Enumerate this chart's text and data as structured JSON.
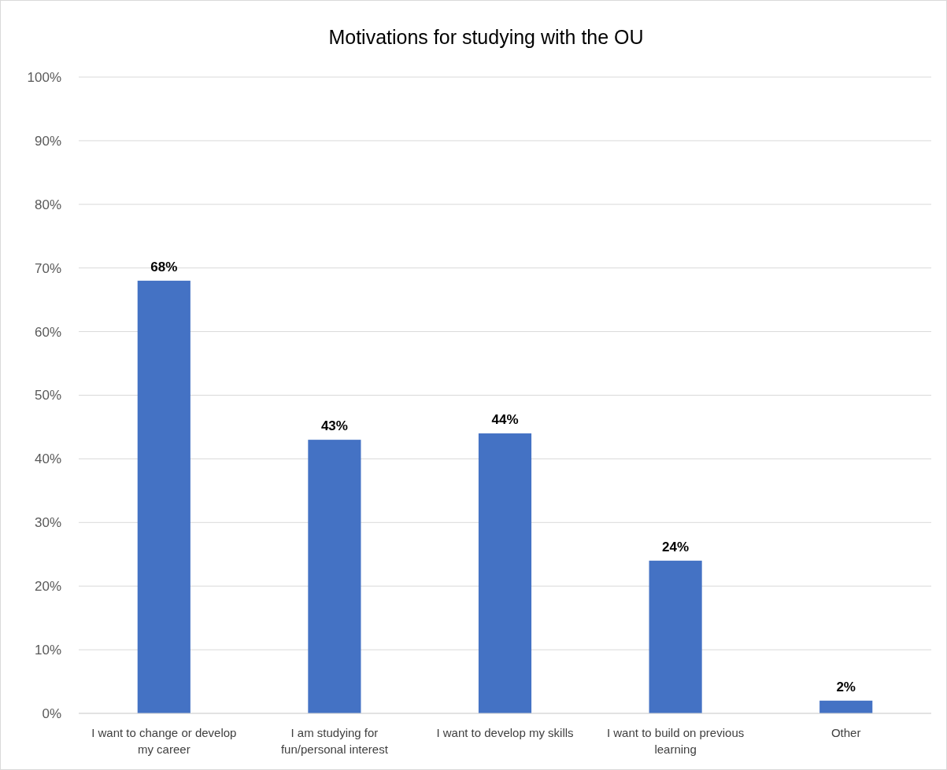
{
  "chart_data": {
    "type": "bar",
    "title": "Motivations for studying with the OU",
    "categories": [
      "I want to change or develop my career",
      "I am studying for fun/personal interest",
      "I want to develop my skills",
      "I want to build on previous learning",
      "Other"
    ],
    "values": [
      68,
      43,
      44,
      24,
      2
    ],
    "value_labels": [
      "68%",
      "43%",
      "44%",
      "24%",
      "2%"
    ],
    "color": "#4472c4",
    "ylim": [
      0,
      100
    ],
    "yticks": [
      {
        "value": 0,
        "label": "0%"
      },
      {
        "value": 10,
        "label": "10%"
      },
      {
        "value": 20,
        "label": "20%"
      },
      {
        "value": 30,
        "label": "30%"
      },
      {
        "value": 40,
        "label": "40%"
      },
      {
        "value": 50,
        "label": "50%"
      },
      {
        "value": 60,
        "label": "60%"
      },
      {
        "value": 70,
        "label": "70%"
      },
      {
        "value": 80,
        "label": "80%"
      },
      {
        "value": 90,
        "label": "90%"
      },
      {
        "value": 100,
        "label": "100%"
      }
    ],
    "grid": "y"
  }
}
